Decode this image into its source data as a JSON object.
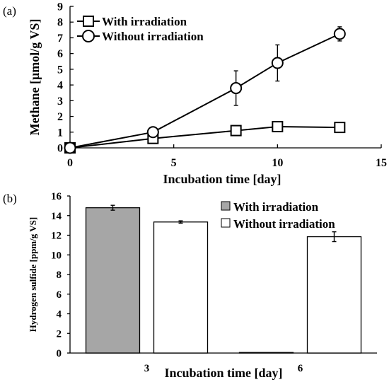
{
  "figure": {
    "panel_a_label": "(a)",
    "panel_b_label": "(b)"
  },
  "chart_data": [
    {
      "type": "line",
      "xlabel": "Incubation time [day]",
      "ylabel": "Methane [μmol/g VS]",
      "xlim": [
        0,
        15
      ],
      "ylim": [
        0,
        9
      ],
      "xticks": [
        0,
        5,
        10,
        15
      ],
      "yticks": [
        0,
        1,
        2,
        3,
        4,
        5,
        6,
        7,
        8,
        9
      ],
      "grid": false,
      "legend_position": "top-left",
      "series": [
        {
          "name": "With irradiation",
          "marker": "square",
          "x": [
            0,
            4,
            8,
            10,
            13
          ],
          "y": [
            0,
            0.6,
            1.1,
            1.35,
            1.3
          ],
          "error": [
            0,
            0.05,
            0.1,
            0.15,
            0.1
          ]
        },
        {
          "name": "Without irradiation",
          "marker": "circle",
          "x": [
            0,
            4,
            8,
            10,
            13
          ],
          "y": [
            0,
            1.0,
            3.8,
            5.4,
            7.25
          ],
          "error": [
            0,
            0.05,
            1.1,
            1.15,
            0.45
          ]
        }
      ]
    },
    {
      "type": "bar",
      "xlabel": "Incubation time [day]",
      "ylabel": "Hydrogen sulfide [ppm/g VS]",
      "categories": [
        "3",
        "6"
      ],
      "ylim": [
        0,
        16
      ],
      "yticks": [
        0,
        2,
        4,
        6,
        8,
        10,
        12,
        14,
        16
      ],
      "grid": false,
      "legend_position": "top-right",
      "series": [
        {
          "name": "With irradiation",
          "color": "#a6a6a6",
          "values": [
            14.8,
            0.05
          ],
          "error": [
            0.25,
            0
          ]
        },
        {
          "name": "Without irradiation",
          "color": "#ffffff",
          "values": [
            13.35,
            11.85
          ],
          "error": [
            0.12,
            0.5
          ]
        }
      ]
    }
  ]
}
